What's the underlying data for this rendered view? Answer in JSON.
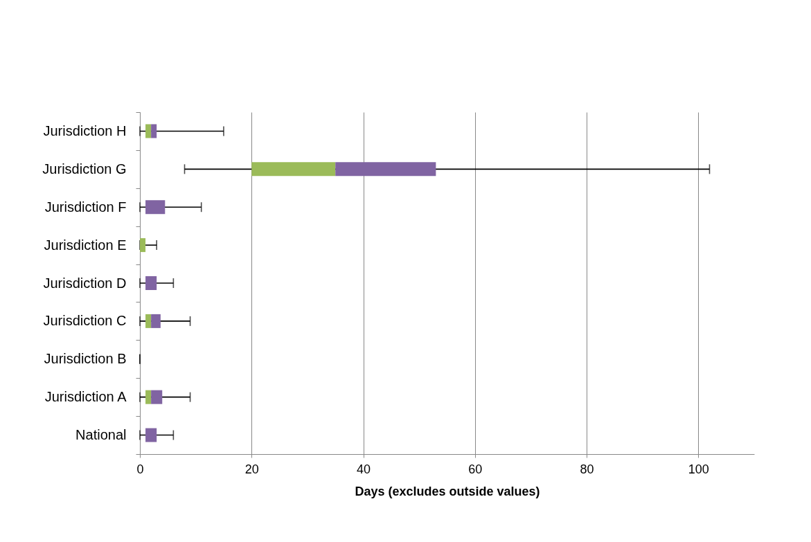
{
  "chart_data": {
    "type": "box",
    "orientation": "horizontal",
    "xlabel": "Days (excludes outside values)",
    "categories": [
      "Jurisdiction H",
      "Jurisdiction G",
      "Jurisdiction F",
      "Jurisdiction E",
      "Jurisdiction D",
      "Jurisdiction C",
      "Jurisdiction B",
      "Jurisdiction A",
      "National"
    ],
    "boxes": [
      {
        "low": 0,
        "q1": 1,
        "median": 2,
        "q3": 3,
        "high": 15
      },
      {
        "low": 8,
        "q1": 20,
        "median": 35,
        "q3": 53,
        "high": 102
      },
      {
        "low": 0,
        "q1": 1,
        "median": 1,
        "q3": 4.5,
        "high": 11
      },
      {
        "low": 0,
        "q1": 0,
        "median": 1,
        "q3": 1,
        "high": 3
      },
      {
        "low": 0,
        "q1": 1,
        "median": 1,
        "q3": 3,
        "high": 6
      },
      {
        "low": 0,
        "q1": 1,
        "median": 2,
        "q3": 3.7,
        "high": 9
      },
      {
        "low": 0,
        "q1": 0,
        "median": 0,
        "q3": 0,
        "high": 0
      },
      {
        "low": 0,
        "q1": 1,
        "median": 2,
        "q3": 4,
        "high": 9
      },
      {
        "low": 0,
        "q1": 1,
        "median": 1,
        "q3": 3,
        "high": 6
      }
    ],
    "colors": [
      [
        "#9bbb59",
        "#8064a2"
      ],
      [
        "#9bbb59",
        "#8064a2"
      ],
      [
        "#9bbb59",
        "#8064a2"
      ],
      [
        "#9bbb59",
        "#8064a2"
      ],
      [
        "#9bbb59",
        "#8064a2"
      ],
      [
        "#9bbb59",
        "#8064a2"
      ],
      [
        "#9bbb59",
        "#8064a2"
      ],
      [
        "#9bbb59",
        "#8064a2"
      ],
      [
        "#9bbb59",
        "#8064a2"
      ]
    ],
    "xlim": [
      0,
      110
    ],
    "xticks": [
      0,
      20,
      40,
      60,
      80,
      100
    ],
    "grid": "x"
  }
}
